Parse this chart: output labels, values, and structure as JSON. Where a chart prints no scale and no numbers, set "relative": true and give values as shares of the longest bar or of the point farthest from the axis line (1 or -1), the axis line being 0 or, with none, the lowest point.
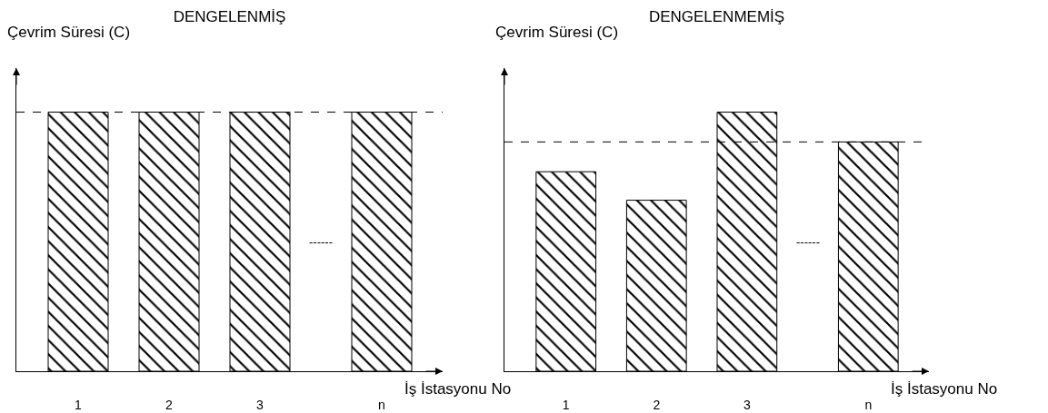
{
  "chart_data": [
    {
      "type": "bar",
      "title": "DENGELENMİŞ",
      "xlabel": "İş İstasyonu No",
      "ylabel": "Çevrim Süresi (C)",
      "categories": [
        "1",
        "2",
        "3",
        null,
        "n"
      ],
      "values": [
        1,
        1,
        1,
        null,
        1
      ],
      "color": "#000000",
      "relative": true,
      "ref_lines": [
        {
          "axis": "y",
          "value": 1,
          "line_style": "dashed",
          "color": "#000000"
        }
      ],
      "annotations": [
        "------"
      ]
    },
    {
      "type": "bar",
      "title": "DENGELENMEMİŞ",
      "xlabel": "İş İstasyonu No",
      "ylabel": "Çevrim Süresi (C)",
      "categories": [
        "1",
        "2",
        "3",
        null,
        "n"
      ],
      "values": [
        0.77,
        0.66,
        1,
        null,
        0.885
      ],
      "color": "#000000",
      "relative": true,
      "ref_lines": [
        {
          "axis": "y",
          "value": 0.885,
          "line_style": "dashed",
          "color": "#000000"
        }
      ],
      "annotations": [
        "------"
      ]
    }
  ]
}
